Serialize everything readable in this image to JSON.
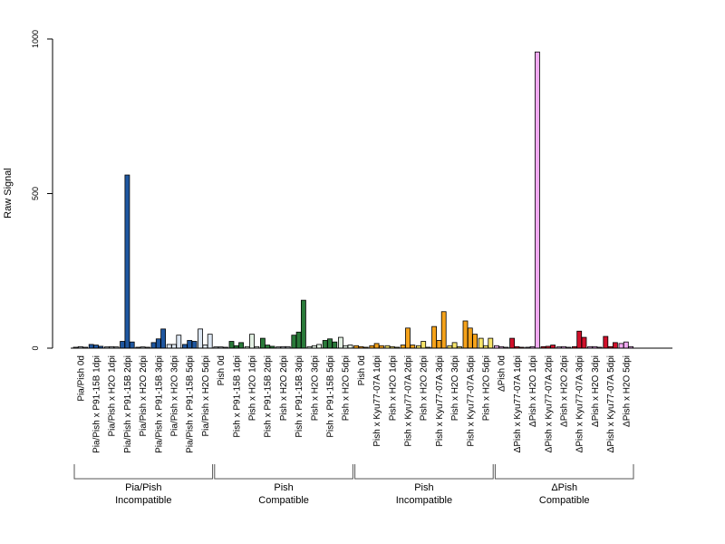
{
  "chart_data": {
    "type": "bar",
    "ylabel": "Raw Signal",
    "ylim": [
      0,
      1000
    ],
    "yticks": [
      0,
      500,
      1000
    ],
    "bars_per_category": 3,
    "categories": [
      "Pia/Pish 0d",
      "Pia/Pish x P91-15B 1dpi",
      "Pia/Pish x H2O 1dpi",
      "Pia/Pish x P91-15B 2dpi",
      "Pia/Pish x H2O 2dpi",
      "Pia/Pish x P91-15B 3dpi",
      "Pia/Pish x H2O 3dpi",
      "Pia/Pish x P91-15B 5dpi",
      "Pia/Pish x H2O 5dpi",
      "Pish 0d",
      "Pish x P91-15B 1dpi",
      "Pish x H2O 1dpi",
      "Pish x P91-15B 2dpi",
      "Pish x H2O 2dpi",
      "Pish x P91-15B 3dpi",
      "Pish x H2O 3dpi",
      "Pish x P91-15B 5dpi",
      "Pish x H2O 5dpi",
      "Pish 0d",
      "Pish x Kyu77-07A 1dpi",
      "Pish x H2O 1dpi",
      "Pish x Kyu77-07A 2dpi",
      "Pish x H2O 2dpi",
      "Pish x Kyu77-07A 3dpi",
      "Pish x H2O 3dpi",
      "Pish x Kyu77-07A 5dpi",
      "Pish x H2O 5dpi",
      "ΔPish 0d",
      "ΔPish x Kyu77-07A 1dpi",
      "ΔPish x H2O 1dpi",
      "ΔPish x Kyu77-07A 2dpi",
      "ΔPish x H2O 2dpi",
      "ΔPish x Kyu77-07A 3dpi",
      "ΔPish x H2O 3dpi",
      "ΔPish x Kyu77-07A 5dpi",
      "ΔPish x H2O 5dpi"
    ],
    "values": [
      [
        3,
        5,
        3
      ],
      [
        12,
        10,
        6
      ],
      [
        4,
        5,
        4
      ],
      [
        22,
        560,
        20
      ],
      [
        3,
        4,
        3
      ],
      [
        18,
        30,
        62
      ],
      [
        12,
        12,
        42
      ],
      [
        12,
        25,
        22
      ],
      [
        62,
        10,
        45
      ],
      [
        4,
        4,
        3
      ],
      [
        22,
        8,
        18
      ],
      [
        5,
        45,
        5
      ],
      [
        32,
        10,
        6
      ],
      [
        4,
        5,
        5
      ],
      [
        42,
        52,
        155
      ],
      [
        5,
        8,
        12
      ],
      [
        25,
        30,
        20
      ],
      [
        35,
        8,
        10
      ],
      [
        8,
        5,
        3
      ],
      [
        8,
        15,
        8
      ],
      [
        8,
        5,
        3
      ],
      [
        10,
        65,
        10
      ],
      [
        8,
        22,
        3
      ],
      [
        70,
        25,
        118
      ],
      [
        8,
        18,
        5
      ],
      [
        88,
        65,
        45
      ],
      [
        32,
        8,
        32
      ],
      [
        8,
        5,
        3
      ],
      [
        32,
        5,
        3
      ],
      [
        3,
        5,
        958
      ],
      [
        5,
        6,
        10
      ],
      [
        4,
        5,
        3
      ],
      [
        5,
        55,
        35
      ],
      [
        5,
        5,
        3
      ],
      [
        38,
        5,
        18
      ],
      [
        15,
        20,
        5
      ]
    ],
    "colors": [
      [
        "#b9bfc9",
        "#b9bfc9",
        "#b9bfc9"
      ],
      [
        "#1f57a0",
        "#1f57a0",
        "#1f57a0"
      ],
      [
        "#b9bfc9",
        "#b9bfc9",
        "#b9bfc9"
      ],
      [
        "#1f57a0",
        "#1f57a0",
        "#1f57a0"
      ],
      [
        "#b9bfc9",
        "#b9bfc9",
        "#b9bfc9"
      ],
      [
        "#1f57a0",
        "#1f57a0",
        "#1f57a0"
      ],
      [
        "#dde7f3",
        "#dde7f3",
        "#dde7f3"
      ],
      [
        "#1f57a0",
        "#1f57a0",
        "#1f57a0"
      ],
      [
        "#dde7f3",
        "#dde7f3",
        "#dde7f3"
      ],
      [
        "#b9bfc9",
        "#b9bfc9",
        "#b9bfc9"
      ],
      [
        "#2a7a3a",
        "#2a7a3a",
        "#2a7a3a"
      ],
      [
        "#e2f0e2",
        "#e2f0e2",
        "#e2f0e2"
      ],
      [
        "#2a7a3a",
        "#2a7a3a",
        "#2a7a3a"
      ],
      [
        "#b9bfc9",
        "#b9bfc9",
        "#b9bfc9"
      ],
      [
        "#2a7a3a",
        "#2a7a3a",
        "#2a7a3a"
      ],
      [
        "#e2f0e2",
        "#e2f0e2",
        "#e2f0e2"
      ],
      [
        "#2a7a3a",
        "#2a7a3a",
        "#2a7a3a"
      ],
      [
        "#e2f0e2",
        "#e2f0e2",
        "#e2f0e2"
      ],
      [
        "#f5a21a",
        "#f5a21a",
        "#f5a21a"
      ],
      [
        "#f5a21a",
        "#f5a21a",
        "#f5a21a"
      ],
      [
        "#f7e56a",
        "#f7e56a",
        "#f7e56a"
      ],
      [
        "#f5a21a",
        "#f5a21a",
        "#f5a21a"
      ],
      [
        "#f7e56a",
        "#f7e56a",
        "#f7e56a"
      ],
      [
        "#f5a21a",
        "#f5a21a",
        "#f5a21a"
      ],
      [
        "#f7e56a",
        "#f7e56a",
        "#f7e56a"
      ],
      [
        "#f5a21a",
        "#f5a21a",
        "#f5a21a"
      ],
      [
        "#f7e56a",
        "#f7e56a",
        "#f7e56a"
      ],
      [
        "#e7b0e2",
        "#e7b0e2",
        "#e7b0e2"
      ],
      [
        "#d0102a",
        "#d0102a",
        "#d0102a"
      ],
      [
        "#f2aaf2",
        "#f2aaf2",
        "#f2aaf2"
      ],
      [
        "#d0102a",
        "#d0102a",
        "#d0102a"
      ],
      [
        "#f2aaf2",
        "#f2aaf2",
        "#f2aaf2"
      ],
      [
        "#d0102a",
        "#d0102a",
        "#d0102a"
      ],
      [
        "#f2aaf2",
        "#f2aaf2",
        "#f2aaf2"
      ],
      [
        "#d0102a",
        "#d0102a",
        "#d0102a"
      ],
      [
        "#f2aaf2",
        "#f2aaf2",
        "#f2aaf2"
      ]
    ],
    "groups": [
      {
        "label_line1": "Pia/Pish",
        "label_line2": "Incompatible",
        "first": 0,
        "last": 8
      },
      {
        "label_line1": "Pish",
        "label_line2": "Compatible",
        "first": 9,
        "last": 17
      },
      {
        "label_line1": "Pish",
        "label_line2": "Incompatible",
        "first": 18,
        "last": 26
      },
      {
        "label_line1": "ΔPish",
        "label_line2": "Compatible",
        "first": 27,
        "last": 35
      }
    ],
    "grid": false,
    "legend": "none"
  }
}
